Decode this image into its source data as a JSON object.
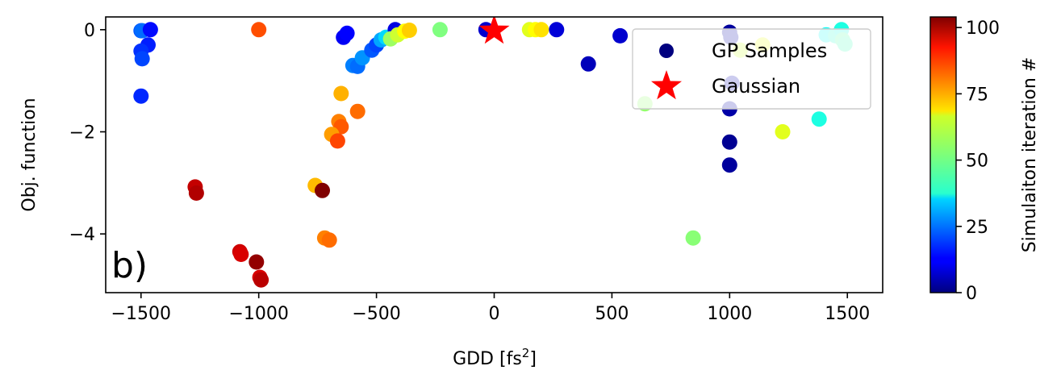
{
  "chart_data": {
    "type": "scatter",
    "panel_label": "b)",
    "xlabel": "GDD [fs",
    "xlabel_sup": "2",
    "xlabel_end": "]",
    "ylabel": "Obj. function",
    "xlim": [
      -1650,
      1650
    ],
    "ylim": [
      -5.15,
      0.25
    ],
    "xticks": [
      -1500,
      -1000,
      -500,
      0,
      500,
      1000,
      1500
    ],
    "xtick_labels": [
      "−1500",
      "−1000",
      "−500",
      "0",
      "500",
      "1000",
      "1500"
    ],
    "yticks": [
      0,
      -2,
      -4
    ],
    "ytick_labels": [
      "0",
      "−2",
      "−4"
    ],
    "colorbar": {
      "label": "Simulaiton iteration #",
      "range": [
        0,
        104
      ],
      "ticks": [
        0,
        25,
        50,
        75,
        100
      ],
      "tick_labels": [
        "0",
        "25",
        "50",
        "75",
        "100"
      ],
      "colormap": "jet"
    },
    "legend": {
      "position": "upper right",
      "entries": [
        {
          "label": "GP Samples",
          "marker": "circle",
          "color": "#00007f"
        },
        {
          "label": "Gaussian",
          "marker": "star",
          "color": "#ff0000"
        }
      ]
    },
    "series": [
      {
        "name": "GP Samples",
        "points": [
          {
            "x": -1500,
            "y": -0.02,
            "c": 22
          },
          {
            "x": -1495,
            "y": -0.02,
            "c": 24
          },
          {
            "x": -1460,
            "y": 0.0,
            "c": 14
          },
          {
            "x": -1470,
            "y": -0.3,
            "c": 16
          },
          {
            "x": -1500,
            "y": -0.42,
            "c": 18
          },
          {
            "x": -1495,
            "y": -0.57,
            "c": 20
          },
          {
            "x": -1500,
            "y": -1.3,
            "c": 17
          },
          {
            "x": -1000,
            "y": 0.0,
            "c": 83
          },
          {
            "x": -640,
            "y": -0.15,
            "c": 12
          },
          {
            "x": -625,
            "y": -0.07,
            "c": 13
          },
          {
            "x": -600,
            "y": -0.7,
            "c": 26
          },
          {
            "x": -580,
            "y": -0.72,
            "c": 24
          },
          {
            "x": -560,
            "y": -0.55,
            "c": 28
          },
          {
            "x": -520,
            "y": -0.4,
            "c": 22
          },
          {
            "x": -500,
            "y": -0.3,
            "c": 20
          },
          {
            "x": -480,
            "y": -0.2,
            "c": 30
          },
          {
            "x": -460,
            "y": -0.15,
            "c": 35
          },
          {
            "x": -420,
            "y": 0.0,
            "c": 10
          },
          {
            "x": -440,
            "y": -0.18,
            "c": 55
          },
          {
            "x": -410,
            "y": -0.1,
            "c": 60
          },
          {
            "x": -380,
            "y": -0.03,
            "c": 65
          },
          {
            "x": -360,
            "y": -0.01,
            "c": 70
          },
          {
            "x": -230,
            "y": 0.0,
            "c": 52
          },
          {
            "x": -650,
            "y": -1.25,
            "c": 73
          },
          {
            "x": -580,
            "y": -1.6,
            "c": 80
          },
          {
            "x": -660,
            "y": -1.8,
            "c": 78
          },
          {
            "x": -650,
            "y": -1.9,
            "c": 82
          },
          {
            "x": -690,
            "y": -2.05,
            "c": 75
          },
          {
            "x": -665,
            "y": -2.18,
            "c": 84
          },
          {
            "x": -760,
            "y": -3.05,
            "c": 72
          },
          {
            "x": -730,
            "y": -3.15,
            "c": 104
          },
          {
            "x": -1270,
            "y": -3.08,
            "c": 97
          },
          {
            "x": -1265,
            "y": -3.2,
            "c": 99
          },
          {
            "x": -720,
            "y": -4.08,
            "c": 78
          },
          {
            "x": -700,
            "y": -4.12,
            "c": 80
          },
          {
            "x": -1080,
            "y": -4.35,
            "c": 96
          },
          {
            "x": -1075,
            "y": -4.4,
            "c": 95
          },
          {
            "x": -1010,
            "y": -4.55,
            "c": 102
          },
          {
            "x": -995,
            "y": -4.85,
            "c": 95
          },
          {
            "x": -990,
            "y": -4.9,
            "c": 98
          },
          {
            "x": -35,
            "y": 0.0,
            "c": 8
          },
          {
            "x": 150,
            "y": 0.0,
            "c": 62
          },
          {
            "x": 175,
            "y": 0.0,
            "c": 65
          },
          {
            "x": 200,
            "y": 0.0,
            "c": 68
          },
          {
            "x": 265,
            "y": 0.0,
            "c": 9
          },
          {
            "x": 400,
            "y": -0.67,
            "c": 6
          },
          {
            "x": 535,
            "y": -0.12,
            "c": 8
          },
          {
            "x": 640,
            "y": -1.45,
            "c": 54
          },
          {
            "x": 845,
            "y": -4.08,
            "c": 53
          },
          {
            "x": 1000,
            "y": -0.05,
            "c": 3
          },
          {
            "x": 1005,
            "y": -0.15,
            "c": 4
          },
          {
            "x": 1010,
            "y": -1.05,
            "c": 5
          },
          {
            "x": 1000,
            "y": -1.55,
            "c": 4
          },
          {
            "x": 1000,
            "y": -2.2,
            "c": 2
          },
          {
            "x": 1000,
            "y": -2.65,
            "c": 3
          },
          {
            "x": 1045,
            "y": -0.4,
            "c": 60
          },
          {
            "x": 1140,
            "y": -0.3,
            "c": 63
          },
          {
            "x": 1225,
            "y": -2.0,
            "c": 62
          },
          {
            "x": 1380,
            "y": -1.75,
            "c": 42
          },
          {
            "x": 1410,
            "y": -0.1,
            "c": 40
          },
          {
            "x": 1450,
            "y": -0.12,
            "c": 44
          },
          {
            "x": 1475,
            "y": 0.0,
            "c": 42
          },
          {
            "x": 1480,
            "y": -0.2,
            "c": 48
          },
          {
            "x": 1490,
            "y": -0.28,
            "c": 46
          }
        ]
      },
      {
        "name": "Gaussian",
        "points": [
          {
            "x": 0,
            "y": -0.02
          }
        ]
      }
    ]
  }
}
